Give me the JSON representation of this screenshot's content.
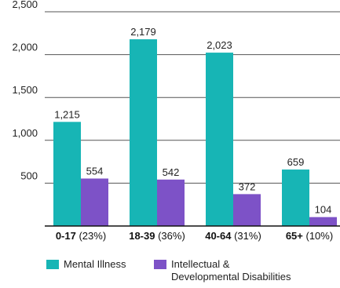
{
  "chart_data": {
    "type": "bar",
    "categories": [
      "0-17",
      "18-39",
      "40-64",
      "65+"
    ],
    "category_shares": [
      "(23%)",
      "(36%)",
      "(31%)",
      "(10%)"
    ],
    "series": [
      {
        "name": "Mental Illness",
        "color": "#17b5b5",
        "values": [
          1215,
          2179,
          2023,
          659
        ],
        "labels": [
          "1,215",
          "2,179",
          "2,023",
          "659"
        ]
      },
      {
        "name": "Intellectual & Developmental Disabilities",
        "color": "#7d52c7",
        "values": [
          554,
          542,
          372,
          104
        ],
        "labels": [
          "554",
          "542",
          "372",
          "104"
        ]
      }
    ],
    "ylim": [
      0,
      2500
    ],
    "yticks": [
      500,
      1000,
      1500,
      2000,
      2500
    ],
    "ytick_labels": [
      "500",
      "1,000",
      "1,500",
      "2,000",
      "2,500"
    ],
    "grid": true,
    "legend_position": "bottom-left",
    "title": "",
    "xlabel": "",
    "ylabel": ""
  }
}
